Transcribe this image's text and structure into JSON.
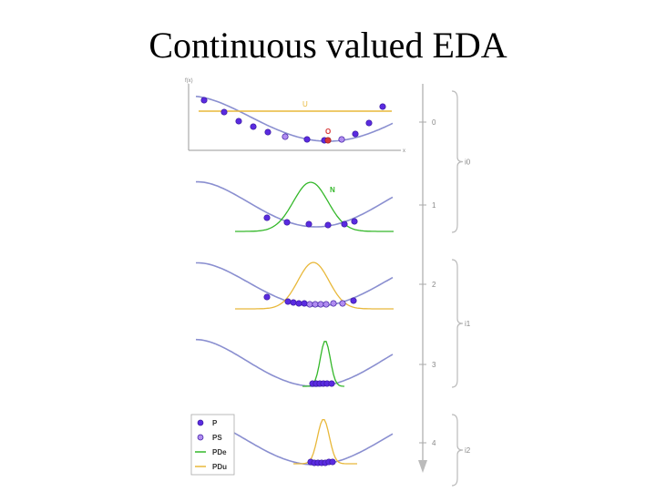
{
  "title": "Continuous valued EDA",
  "figure": {
    "axis_y_label": "f(x)",
    "axis_x_label": "x",
    "uniform_label": "U",
    "optimum_label": "O",
    "normal_label": "N",
    "timeline_ticks": [
      "0",
      "1",
      "2",
      "3",
      "4"
    ],
    "iteration_labels": [
      "i0",
      "i1",
      "i2"
    ],
    "legend": [
      {
        "key": "P",
        "label": "P",
        "kind": "dot-dark"
      },
      {
        "key": "PS",
        "label": "PS",
        "kind": "dot-light"
      },
      {
        "key": "PDe",
        "label": "PDe",
        "kind": "line-green"
      },
      {
        "key": "PDu",
        "label": "PDu",
        "kind": "line-yellow"
      }
    ],
    "colors": {
      "curve": "#8a8fd0",
      "dot_dark": "#5a2be0",
      "dot_light": "#b08cf0",
      "dot_stroke": "#3a1aa0",
      "green": "#34b82a",
      "yellow": "#e8b83a",
      "optimum": "#d83a3a",
      "timeline": "#999999",
      "brace": "#bbbbbb",
      "axis": "#999999"
    }
  }
}
